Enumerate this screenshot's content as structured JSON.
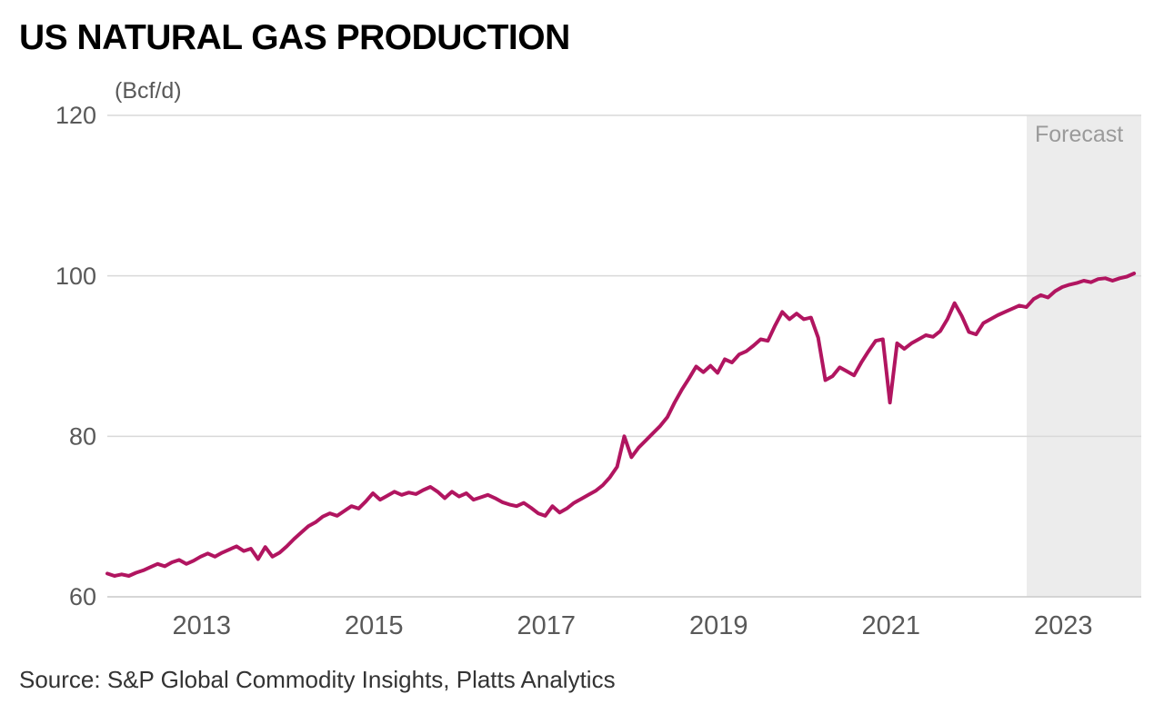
{
  "title": "US NATURAL GAS PRODUCTION",
  "unit_label": "(Bcf/d)",
  "source": "Source: S&P Global Commodity Insights, Platts Analytics",
  "forecast_label": "Forecast",
  "colors": {
    "line": "#b11560",
    "forecast_bg": "#ececec",
    "grid": "#d9d9d9",
    "axis_line": "#c9c9c9",
    "axis_text": "#595959",
    "forecast_text": "#9a9a9a",
    "title_text": "#000000",
    "source_text": "#333333"
  },
  "chart_data": {
    "type": "line",
    "title": "US NATURAL GAS PRODUCTION",
    "xlabel": "",
    "ylabel": "(Bcf/d)",
    "series_name": "US natural gas production",
    "x_start_year": 2012,
    "points_per_year": 12,
    "xlim": [
      2012,
      2024
    ],
    "ylim": [
      60,
      120
    ],
    "yticks": [
      60,
      80,
      100,
      120
    ],
    "xticks": [
      2013,
      2015,
      2017,
      2019,
      2021,
      2023
    ],
    "grid": "horizontal",
    "legend": "none",
    "forecast_start": 2022.67,
    "forecast_end": 2024,
    "annotations": [
      "Forecast"
    ],
    "values": [
      62.9,
      62.6,
      62.8,
      62.6,
      63.0,
      63.3,
      63.7,
      64.1,
      63.8,
      64.3,
      64.6,
      64.1,
      64.5,
      65.0,
      65.4,
      65.0,
      65.5,
      65.9,
      66.3,
      65.7,
      66.0,
      64.7,
      66.2,
      65.0,
      65.5,
      66.3,
      67.2,
      68.0,
      68.8,
      69.3,
      70.0,
      70.4,
      70.1,
      70.7,
      71.3,
      71.0,
      71.9,
      72.9,
      72.1,
      72.6,
      73.1,
      72.7,
      73.0,
      72.8,
      73.3,
      73.7,
      73.1,
      72.3,
      73.1,
      72.5,
      72.9,
      72.1,
      72.4,
      72.7,
      72.3,
      71.8,
      71.5,
      71.3,
      71.7,
      71.1,
      70.4,
      70.1,
      71.3,
      70.5,
      71.0,
      71.7,
      72.2,
      72.7,
      73.2,
      73.9,
      74.9,
      76.2,
      80.0,
      77.4,
      78.6,
      79.5,
      80.4,
      81.3,
      82.4,
      84.2,
      85.8,
      87.2,
      88.7,
      88.0,
      88.8,
      87.9,
      89.6,
      89.2,
      90.2,
      90.6,
      91.3,
      92.1,
      91.9,
      93.8,
      95.5,
      94.6,
      95.3,
      94.6,
      94.8,
      92.3,
      87.0,
      87.5,
      88.6,
      88.1,
      87.6,
      89.2,
      90.6,
      91.9,
      92.1,
      84.2,
      91.6,
      90.9,
      91.6,
      92.1,
      92.6,
      92.4,
      93.1,
      94.6,
      96.6,
      95.0,
      93.0,
      92.7,
      94.1,
      94.6,
      95.1,
      95.5,
      95.9,
      96.3,
      96.1,
      97.1,
      97.6,
      97.3,
      98.1,
      98.6,
      98.9,
      99.1,
      99.4,
      99.2,
      99.6,
      99.7,
      99.4,
      99.7,
      99.9,
      100.3
    ]
  }
}
